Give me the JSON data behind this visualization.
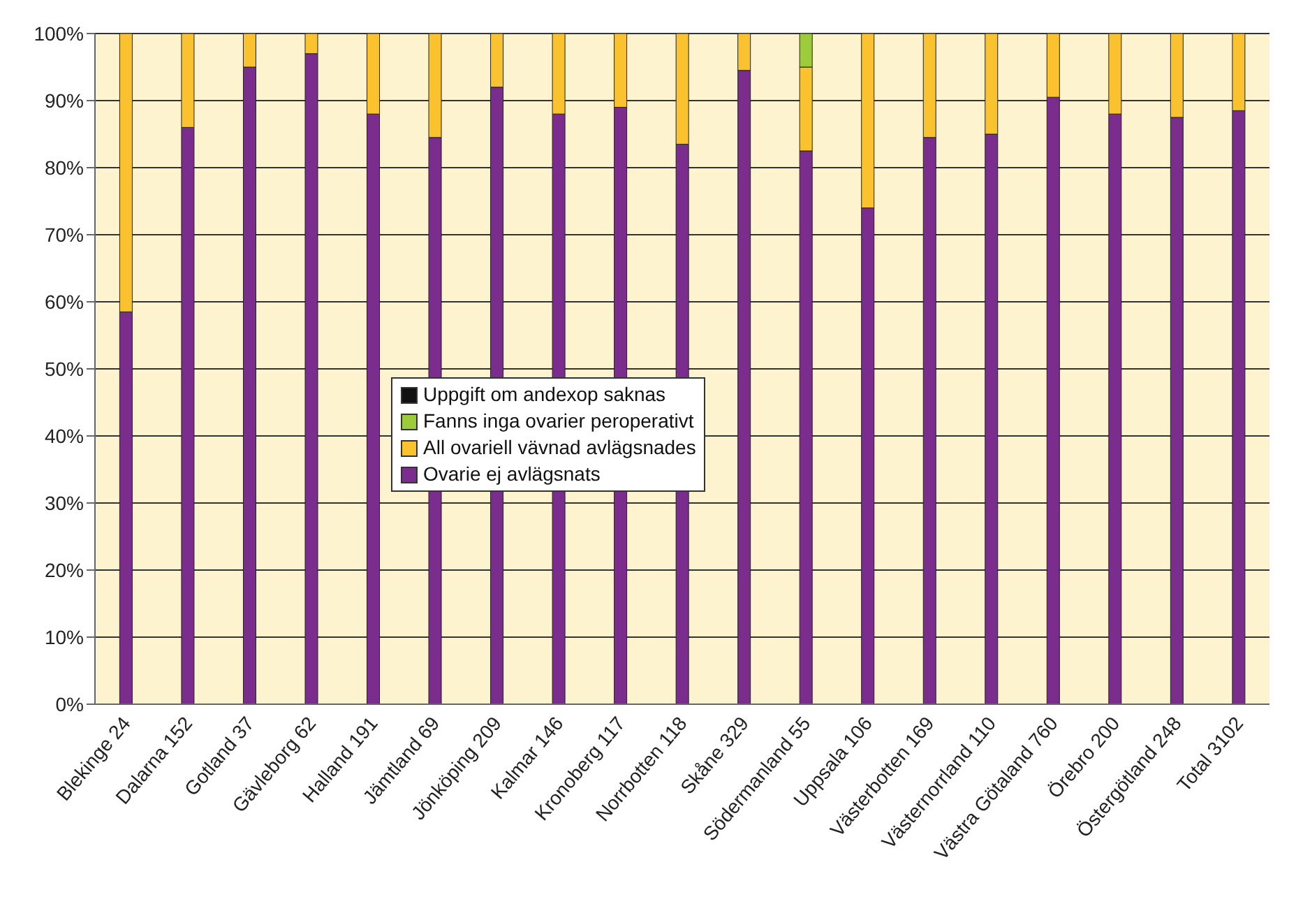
{
  "chart_data": {
    "type": "bar",
    "stacked": true,
    "categories": [
      "Blekinge 24",
      "Dalarna 152",
      "Gotland 37",
      "Gävleborg 62",
      "Halland 191",
      "Jämtland 69",
      "Jönköping 209",
      "Kalmar 146",
      "Kronoberg 117",
      "Norrbotten 118",
      "Skåne 329",
      "Södermanland 55",
      "Uppsala 106",
      "Västerbotten 169",
      "Västernorrland 110",
      "Västra Götaland 760",
      "Örebro 200",
      "Östergötland 248",
      "Total 3102"
    ],
    "series": [
      {
        "name": "Ovarie ej avlägsnats",
        "color": "#7b2d8e",
        "values": [
          58.5,
          86,
          95,
          97,
          88,
          84.5,
          92,
          88,
          89,
          83.5,
          94.5,
          82.5,
          74,
          84.5,
          85,
          90.5,
          88,
          87.5,
          88.5
        ]
      },
      {
        "name": "All ovariell vävnad avlägsnades",
        "color": "#f9c22e",
        "values": [
          41.5,
          14,
          5,
          3,
          12,
          15.5,
          8,
          12,
          11,
          16.5,
          5.5,
          12.5,
          26,
          15.5,
          15,
          9.5,
          12,
          12.5,
          11.5
        ]
      },
      {
        "name": "Fanns inga ovarier peroperativt",
        "color": "#9ccb3b",
        "values": [
          0,
          0,
          0,
          0,
          0,
          0,
          0,
          0,
          0,
          0,
          0,
          5,
          0,
          0,
          0,
          0,
          0,
          0,
          0
        ]
      },
      {
        "name": "Uppgift om andexop saknas",
        "color": "#111111",
        "values": [
          0,
          0,
          0,
          0,
          0,
          0,
          0,
          0,
          0,
          0,
          0,
          0,
          0,
          0,
          0,
          0,
          0,
          0,
          0
        ]
      }
    ],
    "ylim": [
      0,
      100
    ],
    "yticks": [
      {
        "value": 0,
        "label": "0%"
      },
      {
        "value": 10,
        "label": "10%"
      },
      {
        "value": 20,
        "label": "20%"
      },
      {
        "value": 30,
        "label": "30%"
      },
      {
        "value": 40,
        "label": "40%"
      },
      {
        "value": 50,
        "label": "50%"
      },
      {
        "value": 60,
        "label": "60%"
      },
      {
        "value": 70,
        "label": "70%"
      },
      {
        "value": 80,
        "label": "80%"
      },
      {
        "value": 90,
        "label": "90%"
      },
      {
        "value": 100,
        "label": "100%"
      }
    ],
    "grid": "y",
    "legend": "center"
  }
}
